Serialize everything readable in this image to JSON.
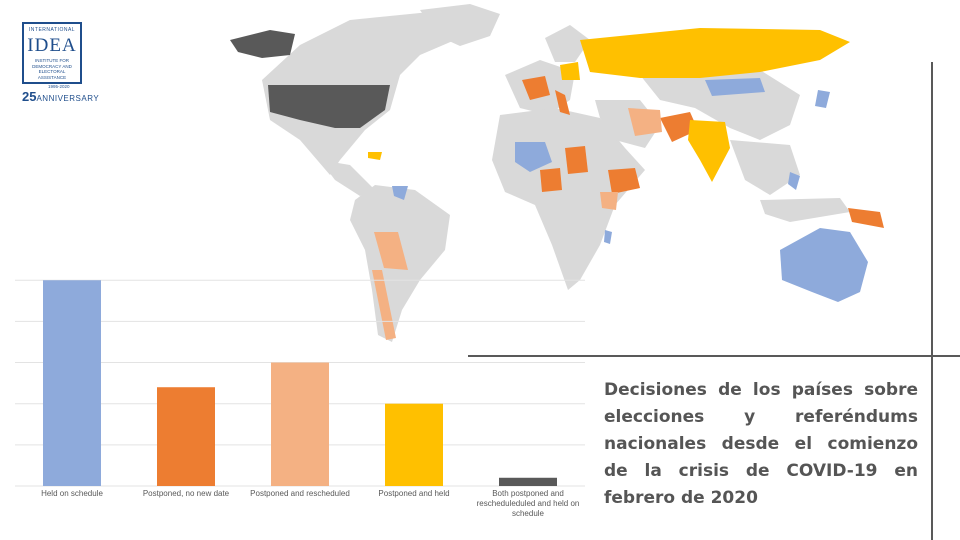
{
  "logo": {
    "top": "INTERNATIONAL",
    "word": "IDEA",
    "sub": "INSTITUTE FOR DEMOCRACY AND ELECTORAL ASSISTANCE",
    "years": "1995-2020",
    "anniv_num": "25",
    "anniv_text": "ANNIVERSARY"
  },
  "caption": "Decisiones de los países sobre elecciones y referéndums nacionales desde el comienzo de la crisis de COVID-19 en febrero de 2020",
  "colors": {
    "held": "#8eaadb",
    "postponed_no_date": "#ed7d31",
    "postponed_rescheduled": "#f4b183",
    "postponed_held": "#ffc000",
    "both": "#595959",
    "no_election": "#d9d9d9"
  },
  "chart_data": {
    "type": "bar",
    "categories": [
      "Held on schedule",
      "Postponed, no new date",
      "Postponed and rescheduled",
      "Postponed and held",
      "Both postponed and rescheduleduled and held on schedule"
    ],
    "values": [
      50,
      24,
      30,
      20,
      2
    ],
    "ylim": [
      0,
      52
    ],
    "grid": true,
    "legend": "none"
  }
}
